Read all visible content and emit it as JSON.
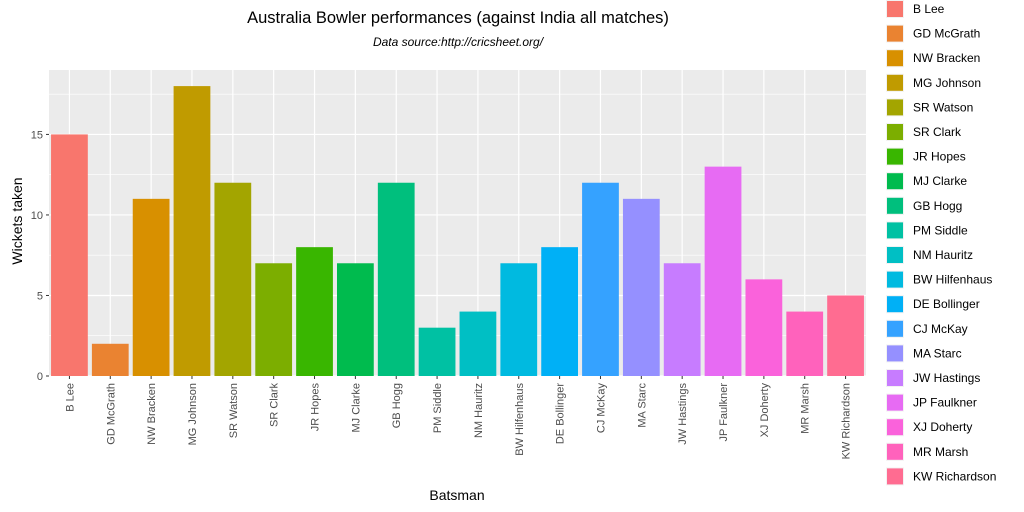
{
  "chart_data": {
    "type": "bar",
    "title": "Australia Bowler performances (against India all matches)",
    "subtitle": "Data source:http://cricsheet.org/",
    "xlabel": "Batsman",
    "ylabel": "Wickets taken",
    "ylim": [
      0,
      19
    ],
    "yticks": [
      0,
      5,
      10,
      15
    ],
    "grid": true,
    "legend_position": "right",
    "categories": [
      "B Lee",
      "GD McGrath",
      "NW Bracken",
      "MG Johnson",
      "SR Watson",
      "SR Clark",
      "JR Hopes",
      "MJ Clarke",
      "GB Hogg",
      "PM Siddle",
      "NM Hauritz",
      "BW Hilfenhaus",
      "DE Bollinger",
      "CJ McKay",
      "MA Starc",
      "JW Hastings",
      "JP Faulkner",
      "XJ Doherty",
      "MR Marsh",
      "KW Richardson"
    ],
    "values": [
      15,
      2,
      11,
      18,
      12,
      7,
      8,
      7,
      12,
      3,
      4,
      7,
      8,
      12,
      11,
      7,
      13,
      6,
      4,
      5
    ],
    "colors": [
      "#F8766D",
      "#EA8331",
      "#D89000",
      "#C09B00",
      "#A3A500",
      "#7CAE00",
      "#39B600",
      "#00BB4E",
      "#00BF7D",
      "#00C1A3",
      "#00BFC4",
      "#00BAE0",
      "#00B0F6",
      "#35A2FF",
      "#9590FF",
      "#C77CFF",
      "#E76BF3",
      "#FA62DB",
      "#FF62BC",
      "#FF6C91"
    ]
  }
}
